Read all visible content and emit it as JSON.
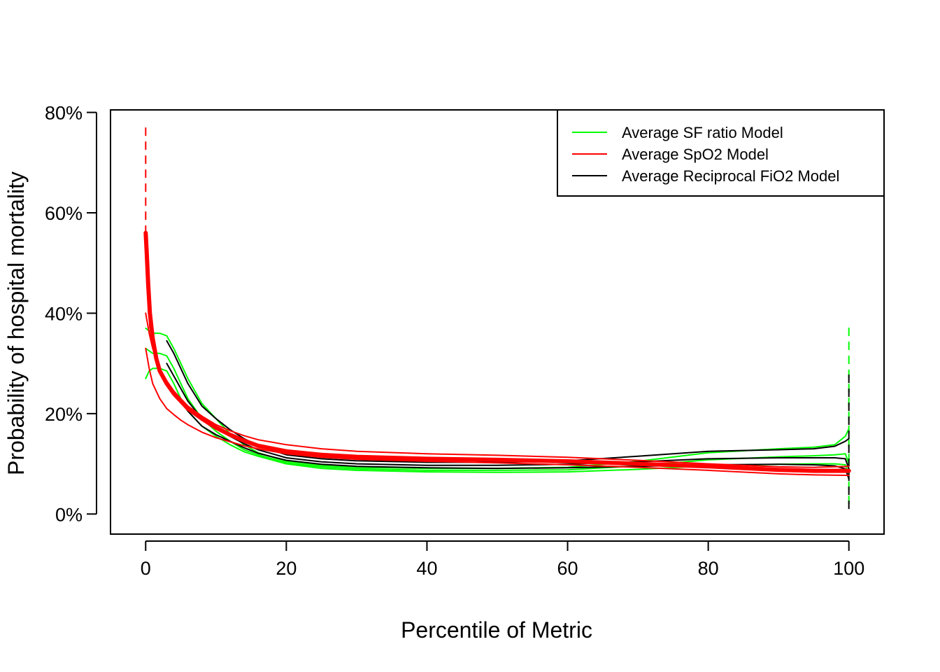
{
  "chart_data": {
    "type": "line",
    "title": "",
    "xlabel": "Percentile of Metric",
    "ylabel": "Probability of hospital mortality",
    "xlim": [
      -5,
      105
    ],
    "ylim": [
      -0.04,
      0.805
    ],
    "x_ticks": [
      0,
      20,
      40,
      60,
      80,
      100
    ],
    "x_tick_labels": [
      "0",
      "20",
      "40",
      "60",
      "80",
      "100"
    ],
    "y_ticks": [
      0,
      0.2,
      0.4,
      0.6,
      0.8
    ],
    "y_tick_labels": [
      "0%",
      "20%",
      "40%",
      "60%",
      "80%"
    ],
    "grid": false,
    "legend_position": "top-right",
    "legend": [
      {
        "label": "Average SF ratio Model",
        "color": "#00ff00"
      },
      {
        "label": "Average SpO2 Model",
        "color": "#ff0000"
      },
      {
        "label": "Average Reciprocal FiO2 Model",
        "color": "#000000"
      }
    ],
    "series": [
      {
        "name": "Average SF ratio Model",
        "role": "mean",
        "color": "#00ff00",
        "dashed": false,
        "width": 2,
        "x": [
          0,
          0.5,
          1,
          2,
          3,
          4,
          5,
          6,
          8,
          10,
          12,
          14,
          16,
          20,
          25,
          30,
          40,
          50,
          60,
          70,
          80,
          90,
          95,
          98,
          99.5,
          100
        ],
        "y": [
          0.33,
          0.325,
          0.32,
          0.32,
          0.315,
          0.29,
          0.26,
          0.23,
          0.19,
          0.165,
          0.145,
          0.128,
          0.118,
          0.102,
          0.094,
          0.09,
          0.087,
          0.087,
          0.088,
          0.096,
          0.108,
          0.114,
          0.116,
          0.118,
          0.12,
          0.1
        ]
      },
      {
        "name": "Average SF ratio Model",
        "role": "upper",
        "color": "#00ff00",
        "dashed": false,
        "width": 2,
        "x": [
          0,
          0.5,
          1,
          2,
          3,
          4,
          5,
          6,
          8,
          10,
          12,
          14,
          16,
          20,
          25,
          30,
          40,
          50,
          60,
          70,
          80,
          90,
          95,
          98,
          99.5,
          100
        ],
        "y": [
          0.37,
          0.365,
          0.36,
          0.36,
          0.355,
          0.33,
          0.3,
          0.27,
          0.22,
          0.19,
          0.16,
          0.138,
          0.122,
          0.105,
          0.097,
          0.093,
          0.091,
          0.091,
          0.093,
          0.105,
          0.122,
          0.13,
          0.133,
          0.138,
          0.155,
          0.17
        ]
      },
      {
        "name": "Average SF ratio Model",
        "role": "lower",
        "color": "#00ff00",
        "dashed": false,
        "width": 2,
        "x": [
          0,
          0.5,
          1,
          2,
          3,
          4,
          5,
          6,
          8,
          10,
          12,
          14,
          16,
          20,
          25,
          30,
          40,
          50,
          60,
          70,
          80,
          90,
          95,
          98,
          99.5,
          100
        ],
        "y": [
          0.27,
          0.285,
          0.29,
          0.29,
          0.285,
          0.26,
          0.23,
          0.205,
          0.175,
          0.155,
          0.138,
          0.124,
          0.115,
          0.1,
          0.091,
          0.087,
          0.084,
          0.083,
          0.084,
          0.089,
          0.096,
          0.099,
          0.1,
          0.1,
          0.098,
          0.08
        ]
      },
      {
        "name": "Average SF ratio Model",
        "role": "spike",
        "color": "#00ff00",
        "dashed": true,
        "width": 2,
        "x": [
          100,
          100
        ],
        "y": [
          0.02,
          0.38
        ]
      },
      {
        "name": "Average Reciprocal FiO2 Model",
        "role": "mean",
        "color": "#000000",
        "dashed": false,
        "width": 2,
        "x": [
          3,
          4,
          5,
          6,
          8,
          10,
          12,
          14,
          16,
          20,
          25,
          30,
          40,
          50,
          60,
          70,
          80,
          90,
          95,
          98,
          99.5,
          100
        ],
        "y": [
          0.3,
          0.275,
          0.25,
          0.225,
          0.19,
          0.17,
          0.155,
          0.14,
          0.128,
          0.112,
          0.104,
          0.1,
          0.097,
          0.097,
          0.099,
          0.104,
          0.11,
          0.112,
          0.112,
          0.112,
          0.11,
          0.09
        ]
      },
      {
        "name": "Average Reciprocal FiO2 Model",
        "role": "upper",
        "color": "#000000",
        "dashed": false,
        "width": 2,
        "x": [
          3,
          4,
          5,
          6,
          8,
          10,
          12,
          14,
          16,
          20,
          25,
          30,
          40,
          50,
          60,
          70,
          80,
          90,
          95,
          98,
          99.5,
          100
        ],
        "y": [
          0.345,
          0.32,
          0.29,
          0.26,
          0.215,
          0.19,
          0.168,
          0.15,
          0.136,
          0.118,
          0.11,
          0.106,
          0.103,
          0.103,
          0.106,
          0.115,
          0.125,
          0.128,
          0.13,
          0.135,
          0.145,
          0.15
        ]
      },
      {
        "name": "Average Reciprocal FiO2 Model",
        "role": "lower",
        "color": "#000000",
        "dashed": false,
        "width": 2,
        "x": [
          3,
          4,
          5,
          6,
          8,
          10,
          12,
          14,
          16,
          20,
          25,
          30,
          40,
          50,
          60,
          70,
          80,
          90,
          95,
          98,
          99.5,
          100
        ],
        "y": [
          0.265,
          0.245,
          0.225,
          0.205,
          0.175,
          0.158,
          0.145,
          0.132,
          0.121,
          0.107,
          0.099,
          0.095,
          0.092,
          0.091,
          0.092,
          0.095,
          0.098,
          0.099,
          0.098,
          0.096,
          0.09,
          0.07
        ]
      },
      {
        "name": "Average Reciprocal FiO2 Model",
        "role": "spike",
        "color": "#000000",
        "dashed": true,
        "width": 2,
        "x": [
          100,
          100
        ],
        "y": [
          0.01,
          0.28
        ]
      },
      {
        "name": "Average SpO2 Model",
        "role": "mean",
        "color": "#ff0000",
        "dashed": false,
        "width": 6,
        "x": [
          0,
          0.15,
          0.35,
          0.6,
          1,
          1.5,
          2,
          3,
          4,
          5,
          6,
          8,
          10,
          12,
          14,
          16,
          20,
          25,
          30,
          40,
          50,
          60,
          70,
          80,
          90,
          95,
          98,
          100
        ],
        "y": [
          0.56,
          0.52,
          0.46,
          0.4,
          0.35,
          0.31,
          0.285,
          0.26,
          0.24,
          0.225,
          0.21,
          0.19,
          0.172,
          0.158,
          0.146,
          0.136,
          0.125,
          0.118,
          0.114,
          0.11,
          0.108,
          0.105,
          0.1,
          0.095,
          0.088,
          0.086,
          0.086,
          0.086
        ]
      },
      {
        "name": "Average SpO2 Model",
        "role": "upper",
        "color": "#ff0000",
        "dashed": false,
        "width": 2,
        "x": [
          0,
          0.5,
          1,
          2,
          3,
          4,
          5,
          6,
          8,
          10,
          12,
          14,
          16,
          20,
          25,
          30,
          40,
          50,
          60,
          70,
          80,
          90,
          95,
          100
        ],
        "y": [
          0.4,
          0.36,
          0.33,
          0.29,
          0.265,
          0.245,
          0.23,
          0.215,
          0.195,
          0.178,
          0.166,
          0.156,
          0.148,
          0.138,
          0.13,
          0.125,
          0.12,
          0.117,
          0.113,
          0.107,
          0.1,
          0.094,
          0.093,
          0.095
        ]
      },
      {
        "name": "Average SpO2 Model",
        "role": "lower",
        "color": "#ff0000",
        "dashed": false,
        "width": 2,
        "x": [
          0,
          0.5,
          1,
          2,
          3,
          4,
          5,
          6,
          8,
          10,
          12,
          14,
          16,
          20,
          25,
          30,
          40,
          50,
          60,
          70,
          80,
          90,
          95,
          100
        ],
        "y": [
          0.33,
          0.29,
          0.26,
          0.23,
          0.21,
          0.198,
          0.187,
          0.178,
          0.163,
          0.152,
          0.144,
          0.136,
          0.13,
          0.12,
          0.113,
          0.109,
          0.105,
          0.102,
          0.098,
          0.093,
          0.087,
          0.08,
          0.078,
          0.077
        ]
      },
      {
        "name": "Average SpO2 Model",
        "role": "spike",
        "color": "#ff0000",
        "dashed": true,
        "width": 2,
        "x": [
          0,
          0,
          0.2,
          0.6
        ],
        "y": [
          0.77,
          0.56,
          0.45,
          0.37
        ]
      }
    ]
  }
}
